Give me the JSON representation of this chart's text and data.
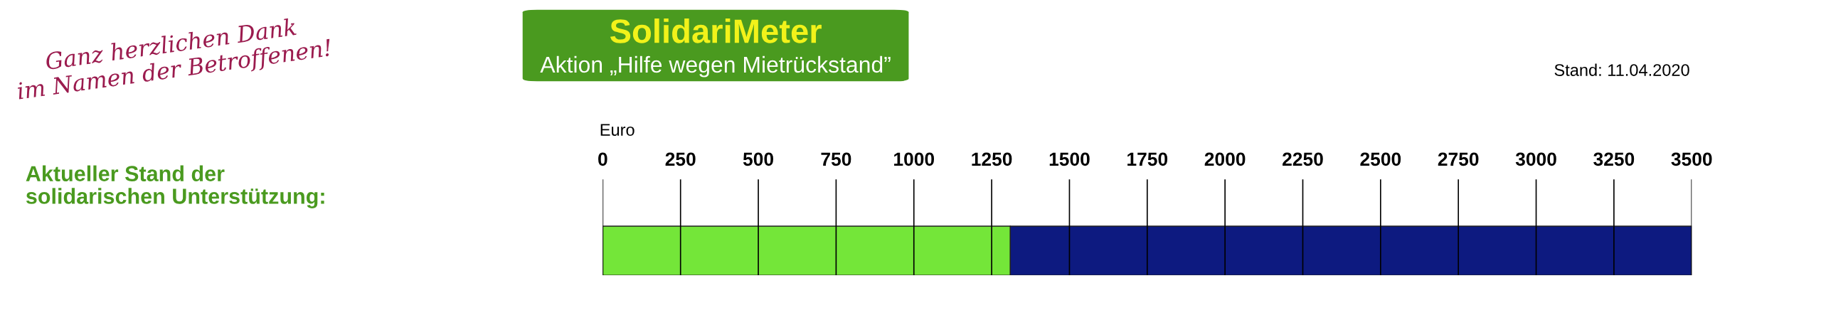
{
  "chart_data": {
    "type": "bar",
    "orientation": "horizontal",
    "stacked": true,
    "title": "SolidariMeter",
    "subtitle": "Aktion „Hilfe wegen Mietrückstand”",
    "xlabel": "Euro",
    "annotations": [
      "Ganz herzlichen Dank\nim Namen der Betroffenen!",
      "Aktueller Stand der\nsolidarischen Unterstützung:",
      "Stand: 11.04.2020"
    ],
    "categories": [
      null
    ],
    "series": [
      {
        "color": "#74e639",
        "values": [
          1310
        ]
      },
      {
        "color": "#0d1a80",
        "values": [
          2190
        ]
      }
    ],
    "xlim": [
      0,
      3500
    ],
    "xticks": [
      0,
      250,
      500,
      750,
      1000,
      1250,
      1500,
      1750,
      2000,
      2250,
      2500,
      2750,
      3000,
      3250,
      3500
    ],
    "grid": "x",
    "tick_labels": "x"
  }
}
